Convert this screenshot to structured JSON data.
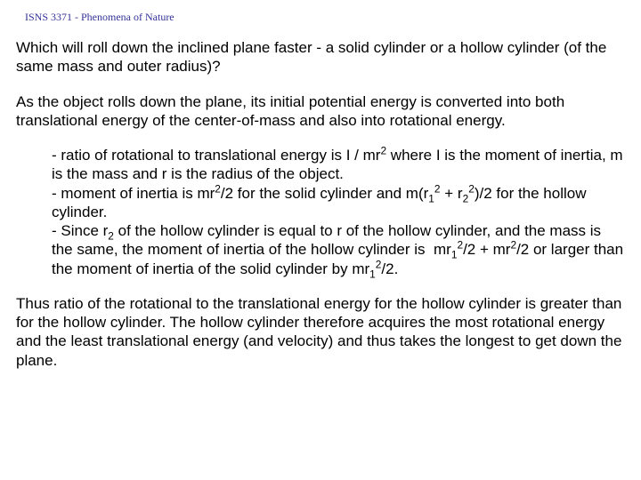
{
  "header": "ISNS 3371 - Phenomena of Nature",
  "p1": "Which will roll down the inclined plane faster - a solid cylinder or a hollow cylinder (of the same mass and outer radius)?",
  "p2": "As the object rolls down the plane, its initial potential energy is converted into both translational energy of the center-of-mass and also into rotational energy.",
  "b1a": "- ratio of rotational to translational energy is I / mr",
  "b1b": " where I is the moment of inertia, m is the mass and r is the radius of the object.",
  "b2a": "- moment of inertia is mr",
  "b2b": "/2 for the solid cylinder and m(r",
  "b2c": " + r",
  "b2d": ")/2 for the hollow cylinder.",
  "b3a": "- Since r",
  "b3b": " of the hollow cylinder is equal to r of the hollow cylinder, and the mass is the same, the moment of inertia of the hollow cylinder is  mr",
  "b3c": "/2 + mr",
  "b3d": "/2 or larger than the moment of inertia of the solid cylinder by mr",
  "b3e": "/2.",
  "p3": "Thus ratio of the rotational to the translational energy for the hollow cylinder is greater than for the hollow cylinder. The hollow cylinder therefore acquires the most rotational energy and the least translational energy (and velocity) and thus takes the longest to get down the plane.",
  "two": "2",
  "one": "1"
}
